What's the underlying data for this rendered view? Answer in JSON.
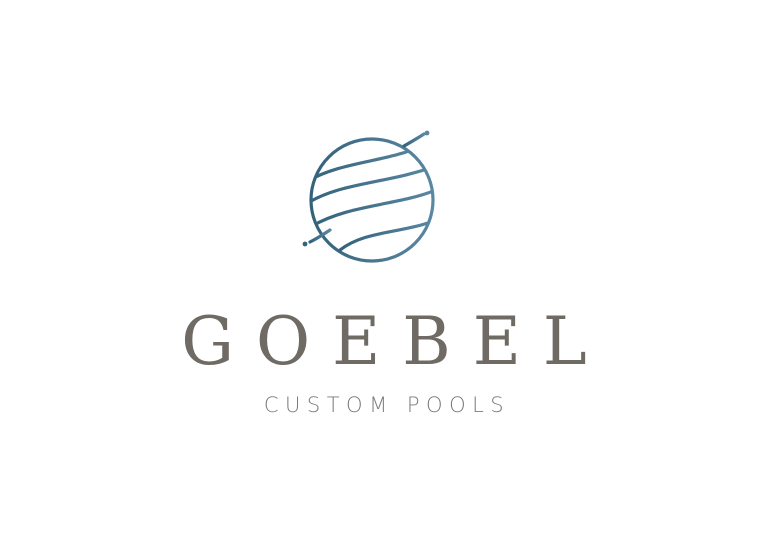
{
  "logo": {
    "brand_name": "GOEBEL",
    "tagline": "CUSTOM POOLS",
    "colors": {
      "emblem_gradient_start": "#35627b",
      "emblem_gradient_end": "#5a87a2",
      "wordmark": "#6f6a64",
      "tagline": "#7b7b7b",
      "background": "#ffffff"
    },
    "emblem_icon": "wave-globe-icon"
  }
}
